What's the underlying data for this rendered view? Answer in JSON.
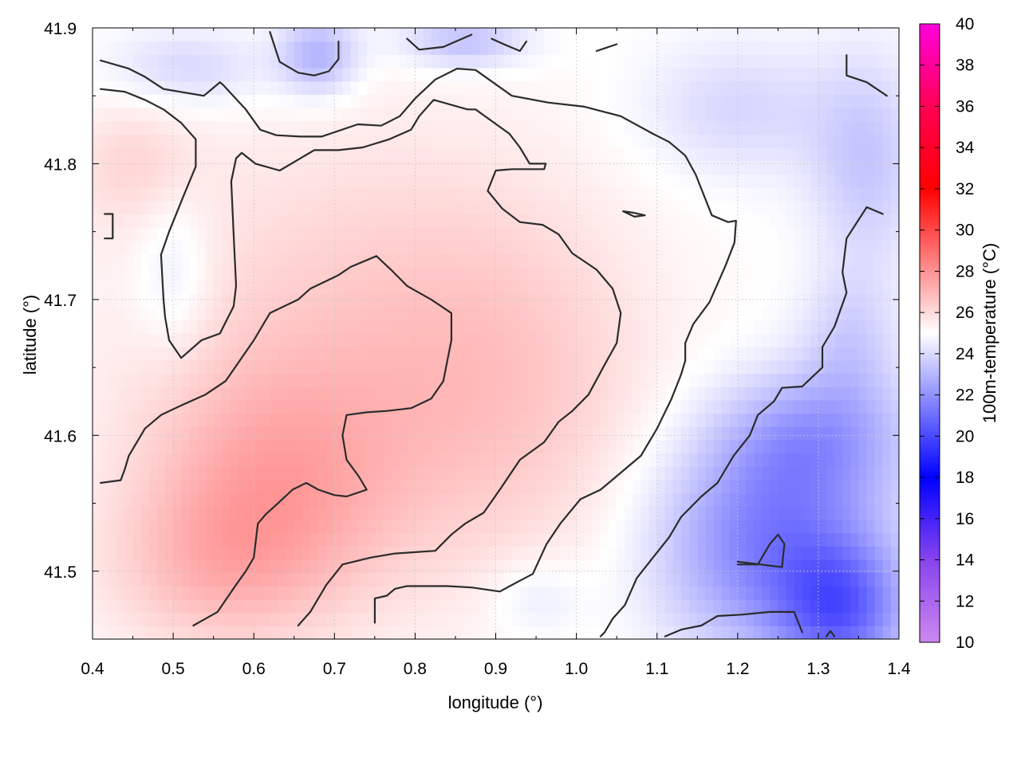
{
  "chart_data": {
    "type": "heatmap",
    "xlabel": "longitude (°)",
    "ylabel": "latitude (°)",
    "colorbar_label": "100m-temperature (°C)",
    "xlim": [
      0.4,
      1.4
    ],
    "ylim": [
      41.45,
      41.9
    ],
    "x_ticks": [
      0.4,
      0.5,
      0.6,
      0.7,
      0.8,
      0.9,
      1.0,
      1.1,
      1.2,
      1.3,
      1.4
    ],
    "y_ticks": [
      41.5,
      41.6,
      41.7,
      41.8,
      41.9
    ],
    "x_tick_labels": [
      "0.4",
      "0.5",
      "0.6",
      "0.7",
      "0.8",
      "0.9",
      "1.0",
      "1.1",
      "1.2",
      "1.3",
      "1.4"
    ],
    "y_tick_labels": [
      "41.5",
      "41.6",
      "41.7",
      "41.8",
      "41.9"
    ],
    "color_range": [
      10,
      40
    ],
    "color_ticks": [
      10,
      12,
      14,
      16,
      18,
      20,
      22,
      24,
      26,
      28,
      30,
      32,
      34,
      36,
      38,
      40
    ],
    "color_tick_labels": [
      "10",
      "12",
      "14",
      "16",
      "18",
      "20",
      "22",
      "24",
      "26",
      "28",
      "30",
      "32",
      "34",
      "36",
      "38",
      "40"
    ],
    "colormap": [
      {
        "value": 10,
        "color": "#cc88ee"
      },
      {
        "value": 14,
        "color": "#8844ee"
      },
      {
        "value": 18,
        "color": "#0000ff"
      },
      {
        "value": 25,
        "color": "#ffffff"
      },
      {
        "value": 32,
        "color": "#ff0000"
      },
      {
        "value": 36,
        "color": "#ff0055"
      },
      {
        "value": 40,
        "color": "#ff00dd"
      }
    ],
    "grid": true,
    "contours": [
      [
        [
          0.41,
          41.876
        ],
        [
          0.445,
          41.87
        ],
        [
          0.465,
          41.864
        ],
        [
          0.488,
          41.855
        ],
        [
          0.538,
          41.85
        ],
        [
          0.55,
          41.856
        ],
        [
          0.558,
          41.86
        ],
        [
          0.562,
          41.858
        ],
        [
          0.59,
          41.84
        ],
        [
          0.608,
          41.825
        ],
        [
          0.628,
          41.821
        ],
        [
          0.658,
          41.82
        ],
        [
          0.684,
          41.82
        ],
        [
          0.729,
          41.829
        ],
        [
          0.758,
          41.828
        ],
        [
          0.781,
          41.835
        ],
        [
          0.8,
          41.848
        ],
        [
          0.825,
          41.862
        ],
        [
          0.852,
          41.87
        ],
        [
          0.875,
          41.869
        ],
        [
          0.92,
          41.85
        ],
        [
          0.965,
          41.845
        ],
        [
          1.01,
          41.842
        ],
        [
          1.055,
          41.835
        ],
        [
          1.095,
          41.822
        ],
        [
          1.115,
          41.816
        ],
        [
          1.135,
          41.806
        ],
        [
          1.148,
          41.792
        ],
        [
          1.168,
          41.762
        ],
        [
          1.188,
          41.757
        ],
        [
          1.198,
          41.758
        ],
        [
          1.196,
          41.742
        ],
        [
          1.185,
          41.725
        ],
        [
          1.165,
          41.698
        ],
        [
          1.145,
          41.682
        ],
        [
          1.135,
          41.668
        ],
        [
          1.135,
          41.655
        ],
        [
          1.13,
          41.645
        ],
        [
          1.118,
          41.627
        ],
        [
          1.1,
          41.605
        ],
        [
          1.08,
          41.585
        ],
        [
          1.05,
          41.57
        ],
        [
          1.03,
          41.56
        ],
        [
          1.005,
          41.553
        ],
        [
          0.98,
          41.535
        ],
        [
          0.963,
          41.52
        ],
        [
          0.946,
          41.498
        ],
        [
          0.93,
          41.493
        ],
        [
          0.905,
          41.485
        ],
        [
          0.87,
          41.488
        ],
        [
          0.84,
          41.489
        ],
        [
          0.79,
          41.489
        ],
        [
          0.775,
          41.487
        ],
        [
          0.765,
          41.482
        ],
        [
          0.75,
          41.48
        ],
        [
          0.75,
          41.462
        ]
      ],
      [
        [
          0.41,
          41.855
        ],
        [
          0.44,
          41.853
        ],
        [
          0.465,
          41.847
        ],
        [
          0.488,
          41.84
        ],
        [
          0.51,
          41.83
        ],
        [
          0.528,
          41.818
        ],
        [
          0.528,
          41.798
        ],
        [
          0.512,
          41.775
        ],
        [
          0.495,
          41.75
        ],
        [
          0.485,
          41.733
        ],
        [
          0.488,
          41.7
        ],
        [
          0.49,
          41.687
        ],
        [
          0.495,
          41.67
        ],
        [
          0.51,
          41.657
        ],
        [
          0.535,
          41.67
        ],
        [
          0.558,
          41.675
        ],
        [
          0.575,
          41.695
        ],
        [
          0.578,
          41.71
        ],
        [
          0.575,
          41.748
        ],
        [
          0.572,
          41.787
        ],
        [
          0.578,
          41.804
        ],
        [
          0.585,
          41.808
        ],
        [
          0.602,
          41.8
        ],
        [
          0.632,
          41.795
        ],
        [
          0.675,
          41.81
        ],
        [
          0.705,
          41.81
        ],
        [
          0.735,
          41.812
        ],
        [
          0.768,
          41.818
        ],
        [
          0.795,
          41.825
        ],
        [
          0.805,
          41.835
        ],
        [
          0.823,
          41.847
        ],
        [
          0.865,
          41.84
        ],
        [
          0.875,
          41.84
        ],
        [
          0.917,
          41.822
        ],
        [
          0.93,
          41.812
        ],
        [
          0.942,
          41.8
        ],
        [
          0.962,
          41.8
        ],
        [
          0.96,
          41.796
        ],
        [
          0.92,
          41.796
        ],
        [
          0.9,
          41.795
        ],
        [
          0.89,
          41.78
        ],
        [
          0.908,
          41.767
        ],
        [
          0.93,
          41.757
        ],
        [
          0.958,
          41.755
        ],
        [
          0.978,
          41.748
        ],
        [
          0.995,
          41.734
        ],
        [
          1.025,
          41.722
        ],
        [
          1.045,
          41.708
        ],
        [
          1.055,
          41.69
        ],
        [
          1.05,
          41.668
        ],
        [
          1.035,
          41.652
        ],
        [
          1.015,
          41.63
        ],
        [
          0.995,
          41.618
        ],
        [
          0.978,
          41.61
        ],
        [
          0.96,
          41.595
        ],
        [
          0.93,
          41.582
        ],
        [
          0.905,
          41.56
        ],
        [
          0.885,
          41.543
        ],
        [
          0.862,
          41.535
        ],
        [
          0.845,
          41.527
        ],
        [
          0.825,
          41.515
        ],
        [
          0.775,
          41.513
        ],
        [
          0.745,
          41.51
        ],
        [
          0.71,
          41.505
        ],
        [
          0.69,
          41.49
        ],
        [
          0.67,
          41.47
        ],
        [
          0.655,
          41.46
        ]
      ],
      [
        [
          0.415,
          41.763
        ],
        [
          0.425,
          41.763
        ],
        [
          0.425,
          41.745
        ],
        [
          0.415,
          41.745
        ]
      ],
      [
        [
          0.525,
          41.46
        ],
        [
          0.555,
          41.47
        ],
        [
          0.578,
          41.49
        ],
        [
          0.59,
          41.5
        ],
        [
          0.6,
          41.51
        ],
        [
          0.602,
          41.52
        ],
        [
          0.605,
          41.535
        ],
        [
          0.615,
          41.542
        ],
        [
          0.63,
          41.55
        ],
        [
          0.648,
          41.56
        ],
        [
          0.665,
          41.565
        ],
        [
          0.68,
          41.56
        ],
        [
          0.7,
          41.556
        ],
        [
          0.715,
          41.555
        ],
        [
          0.74,
          41.56
        ],
        [
          0.73,
          41.57
        ],
        [
          0.715,
          41.582
        ],
        [
          0.71,
          41.6
        ],
        [
          0.715,
          41.615
        ],
        [
          0.74,
          41.617
        ],
        [
          0.765,
          41.618
        ],
        [
          0.795,
          41.62
        ],
        [
          0.82,
          41.627
        ],
        [
          0.835,
          41.64
        ],
        [
          0.84,
          41.655
        ],
        [
          0.845,
          41.67
        ],
        [
          0.845,
          41.69
        ],
        [
          0.82,
          41.7
        ],
        [
          0.79,
          41.71
        ],
        [
          0.77,
          41.722
        ],
        [
          0.752,
          41.732
        ],
        [
          0.72,
          41.724
        ],
        [
          0.705,
          41.718
        ],
        [
          0.67,
          41.708
        ],
        [
          0.655,
          41.7
        ],
        [
          0.62,
          41.69
        ],
        [
          0.6,
          41.67
        ],
        [
          0.565,
          41.64
        ],
        [
          0.54,
          41.63
        ],
        [
          0.51,
          41.622
        ],
        [
          0.485,
          41.615
        ],
        [
          0.465,
          41.605
        ],
        [
          0.455,
          41.595
        ],
        [
          0.445,
          41.585
        ],
        [
          0.44,
          41.575
        ],
        [
          0.435,
          41.567
        ],
        [
          0.41,
          41.565
        ]
      ],
      [
        [
          1.058,
          41.765
        ],
        [
          1.07,
          41.764
        ],
        [
          1.085,
          41.762
        ],
        [
          1.072,
          41.761
        ],
        [
          1.058,
          41.765
        ]
      ],
      [
        [
          0.62,
          41.897
        ],
        [
          0.632,
          41.875
        ],
        [
          0.655,
          41.867
        ],
        [
          0.675,
          41.865
        ],
        [
          0.693,
          41.868
        ],
        [
          0.705,
          41.877
        ],
        [
          0.705,
          41.89
        ]
      ],
      [
        [
          0.79,
          41.892
        ],
        [
          0.805,
          41.884
        ],
        [
          0.835,
          41.886
        ],
        [
          0.87,
          41.895
        ]
      ],
      [
        [
          0.895,
          41.892
        ],
        [
          0.91,
          41.888
        ],
        [
          0.93,
          41.883
        ],
        [
          0.938,
          41.89
        ]
      ],
      [
        [
          1.025,
          41.883
        ],
        [
          1.05,
          41.888
        ]
      ],
      [
        [
          1.335,
          41.88
        ],
        [
          1.335,
          41.865
        ],
        [
          1.36,
          41.86
        ],
        [
          1.385,
          41.85
        ]
      ],
      [
        [
          1.38,
          41.763
        ],
        [
          1.36,
          41.768
        ],
        [
          1.335,
          41.745
        ],
        [
          1.33,
          41.72
        ],
        [
          1.335,
          41.705
        ],
        [
          1.32,
          41.68
        ],
        [
          1.305,
          41.665
        ],
        [
          1.305,
          41.65
        ],
        [
          1.28,
          41.636
        ],
        [
          1.255,
          41.635
        ],
        [
          1.245,
          41.625
        ],
        [
          1.225,
          41.615
        ],
        [
          1.215,
          41.6
        ],
        [
          1.195,
          41.585
        ],
        [
          1.175,
          41.565
        ],
        [
          1.155,
          41.555
        ],
        [
          1.13,
          41.54
        ],
        [
          1.115,
          41.525
        ],
        [
          1.095,
          41.51
        ],
        [
          1.075,
          41.495
        ],
        [
          1.06,
          41.475
        ],
        [
          1.045,
          41.465
        ],
        [
          1.035,
          41.455
        ],
        [
          1.03,
          41.452
        ]
      ],
      [
        [
          1.2,
          41.505
        ],
        [
          1.225,
          41.505
        ],
        [
          1.24,
          41.52
        ],
        [
          1.25,
          41.527
        ],
        [
          1.258,
          41.52
        ],
        [
          1.255,
          41.503
        ],
        [
          1.2,
          41.507
        ]
      ],
      [
        [
          1.11,
          41.452
        ],
        [
          1.13,
          41.457
        ],
        [
          1.155,
          41.46
        ],
        [
          1.175,
          41.467
        ],
        [
          1.205,
          41.468
        ],
        [
          1.24,
          41.47
        ],
        [
          1.27,
          41.47
        ],
        [
          1.28,
          41.455
        ]
      ],
      [
        [
          1.31,
          41.452
        ],
        [
          1.315,
          41.456
        ],
        [
          1.32,
          41.452
        ]
      ]
    ],
    "heat_blobs": [
      {
        "lon": 0.72,
        "lat": 41.67,
        "value": 26.3,
        "spread_lon": 0.28,
        "spread_lat": 0.16
      },
      {
        "lon": 0.62,
        "lat": 41.56,
        "value": 26.8,
        "spread_lon": 0.16,
        "spread_lat": 0.09
      },
      {
        "lon": 0.92,
        "lat": 41.63,
        "value": 26.0,
        "spread_lon": 0.18,
        "spread_lat": 0.14
      },
      {
        "lon": 0.45,
        "lat": 41.8,
        "value": 25.9,
        "spread_lon": 0.08,
        "spread_lat": 0.05
      },
      {
        "lon": 0.55,
        "lat": 41.5,
        "value": 26.2,
        "spread_lon": 0.14,
        "spread_lat": 0.06
      },
      {
        "lon": 1.24,
        "lat": 41.52,
        "value": 21.5,
        "spread_lon": 0.14,
        "spread_lat": 0.08
      },
      {
        "lon": 1.33,
        "lat": 41.47,
        "value": 21.6,
        "spread_lon": 0.08,
        "spread_lat": 0.05
      },
      {
        "lon": 1.3,
        "lat": 41.6,
        "value": 22.8,
        "spread_lon": 0.12,
        "spread_lat": 0.05
      },
      {
        "lon": 0.68,
        "lat": 41.88,
        "value": 22.8,
        "spread_lon": 0.05,
        "spread_lat": 0.03
      },
      {
        "lon": 0.86,
        "lat": 41.89,
        "value": 23.2,
        "spread_lon": 0.08,
        "spread_lat": 0.02
      },
      {
        "lon": 1.36,
        "lat": 41.8,
        "value": 23.5,
        "spread_lon": 0.07,
        "spread_lat": 0.08
      },
      {
        "lon": 0.5,
        "lat": 41.72,
        "value": 24.0,
        "spread_lon": 0.05,
        "spread_lat": 0.06
      },
      {
        "lon": 0.52,
        "lat": 41.87,
        "value": 23.8,
        "spread_lon": 0.1,
        "spread_lat": 0.03
      },
      {
        "lon": 1.2,
        "lat": 41.84,
        "value": 23.9,
        "spread_lon": 0.12,
        "spread_lat": 0.05
      },
      {
        "lon": 0.95,
        "lat": 41.48,
        "value": 24.2,
        "spread_lon": 0.06,
        "spread_lat": 0.03
      },
      {
        "lon": 1.34,
        "lat": 41.67,
        "value": 23.8,
        "spread_lon": 0.06,
        "spread_lat": 0.05
      }
    ]
  }
}
